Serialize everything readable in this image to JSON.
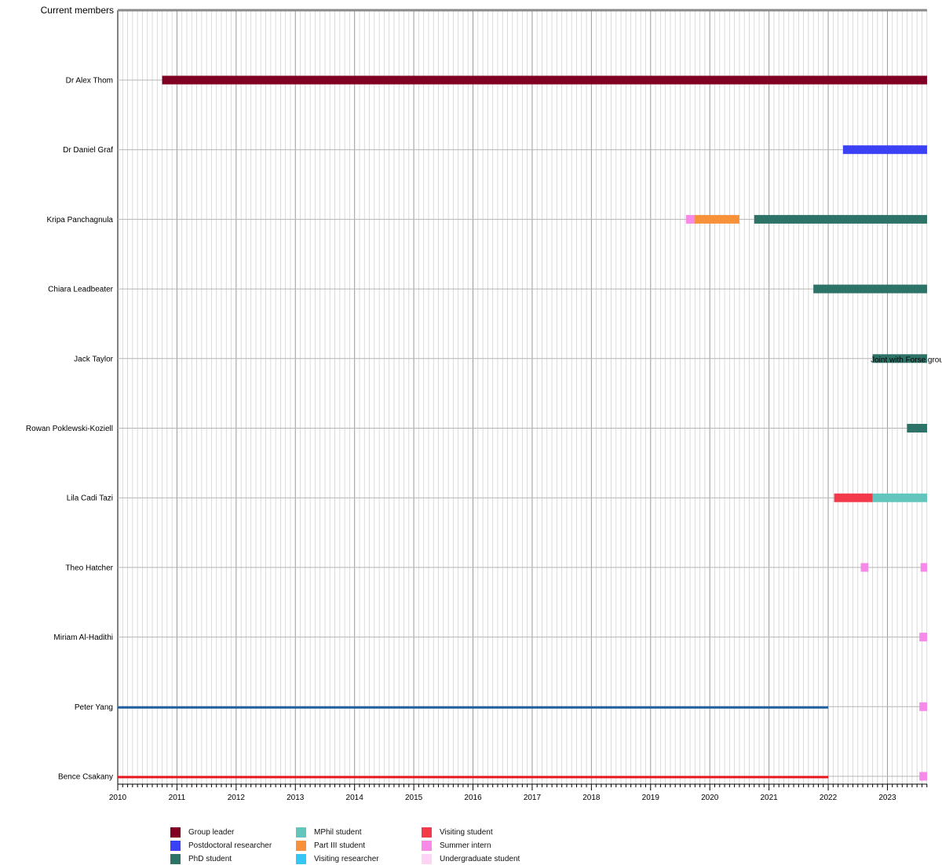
{
  "chart_data": {
    "type": "timeline",
    "title": "Current members",
    "x_axis": {
      "range": [
        2010.0,
        2023.67
      ],
      "tick_labels": [
        "2010",
        "2011",
        "2012",
        "2013",
        "2014",
        "2015",
        "2016",
        "2017",
        "2018",
        "2019",
        "2020",
        "2021",
        "2022",
        "2023"
      ],
      "minor_ticks": "monthly",
      "grid": true
    },
    "categories": {
      "group_leader": {
        "label": "Group leader",
        "color": "#7f0023"
      },
      "postdoc": {
        "label": "Postdoctoral researcher",
        "color": "#3b41f5"
      },
      "phd": {
        "label": "PhD student",
        "color": "#2e7368"
      },
      "mphil": {
        "label": "MPhil student",
        "color": "#63c6bc"
      },
      "part3": {
        "label": "Part III student",
        "color": "#f7923a"
      },
      "visiting_researcher": {
        "label": "Visiting researcher",
        "color": "#36c6f5"
      },
      "visiting_student": {
        "label": "Visiting student",
        "color": "#f23a4b"
      },
      "summer_intern": {
        "label": "Summer intern",
        "color": "#f789e8"
      },
      "undergrad": {
        "label": "Undergraduate student",
        "color": "#ffd3f6"
      }
    },
    "legend_order": [
      [
        "group_leader",
        "postdoc",
        "phd"
      ],
      [
        "mphil",
        "part3",
        "visiting_researcher"
      ],
      [
        "visiting_student",
        "summer_intern",
        "undergrad"
      ]
    ],
    "members": [
      {
        "name": "Dr Alex Thom",
        "bars": [
          {
            "category": "group_leader",
            "start": 2010.75,
            "end": 2023.67
          }
        ]
      },
      {
        "name": "Dr Daniel Graf",
        "bars": [
          {
            "category": "postdoc",
            "start": 2022.25,
            "end": 2023.67
          }
        ]
      },
      {
        "name": "Kripa Panchagnula",
        "bars": [
          {
            "category": "summer_intern",
            "start": 2019.6,
            "end": 2019.74
          },
          {
            "category": "part3",
            "start": 2019.74,
            "end": 2020.5
          },
          {
            "category": "phd",
            "start": 2020.75,
            "end": 2023.67
          }
        ]
      },
      {
        "name": "Chiara Leadbeater",
        "bars": [
          {
            "category": "phd",
            "start": 2021.75,
            "end": 2023.67
          }
        ]
      },
      {
        "name": "Jack Taylor",
        "bars": [
          {
            "category": "phd",
            "start": 2022.75,
            "end": 2023.67
          }
        ],
        "annotation": "Joint with Forse group"
      },
      {
        "name": "Rowan Poklewski-Koziell",
        "bars": [
          {
            "category": "phd",
            "start": 2023.33,
            "end": 2023.67
          }
        ]
      },
      {
        "name": "Lila Cadi Tazi",
        "bars": [
          {
            "category": "visiting_student",
            "start": 2022.1,
            "end": 2022.75
          },
          {
            "category": "mphil",
            "start": 2022.75,
            "end": 2023.67
          }
        ]
      },
      {
        "name": "Theo Hatcher",
        "bars": [
          {
            "category": "summer_intern",
            "start": 2022.55,
            "end": 2022.68
          },
          {
            "category": "summer_intern",
            "start": 2023.56,
            "end": 2023.67
          }
        ]
      },
      {
        "name": "Miriam Al-Hadithi",
        "bars": [
          {
            "category": "summer_intern",
            "start": 2023.54,
            "end": 2023.67
          }
        ]
      },
      {
        "name": "Peter Yang",
        "line": {
          "start": 2010.0,
          "end": 2022.0,
          "color": "#1f5fa0"
        },
        "bars": [
          {
            "category": "summer_intern",
            "start": 2023.54,
            "end": 2023.67
          }
        ]
      },
      {
        "name": "Bence Csakany",
        "line": {
          "start": 2010.0,
          "end": 2022.0,
          "color": "#e8161c"
        },
        "bars": [
          {
            "category": "summer_intern",
            "start": 2023.54,
            "end": 2023.67
          }
        ]
      }
    ]
  }
}
